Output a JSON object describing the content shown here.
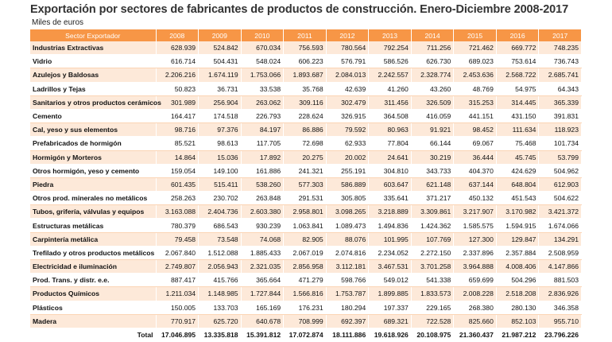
{
  "title": "Exportación por sectores de fabricantes de productos de construcción. Enero-Diciembre 2008-2017",
  "subtitle": "Miles de euros",
  "table": {
    "header": [
      "Sector Exportador",
      "2008",
      "2009",
      "2010",
      "2011",
      "2012",
      "2013",
      "2014",
      "2015",
      "2016",
      "2017"
    ],
    "rows": [
      [
        "Industrias Extractivas",
        "628.939",
        "524.842",
        "670.034",
        "756.593",
        "780.564",
        "792.254",
        "711.256",
        "721.462",
        "669.772",
        "748.235"
      ],
      [
        "Vidrio",
        "616.714",
        "504.431",
        "548.024",
        "606.223",
        "576.791",
        "586.526",
        "626.730",
        "689.023",
        "753.614",
        "736.743"
      ],
      [
        "Azulejos y Baldosas",
        "2.206.216",
        "1.674.119",
        "1.753.066",
        "1.893.687",
        "2.084.013",
        "2.242.557",
        "2.328.774",
        "2.453.636",
        "2.568.722",
        "2.685.741"
      ],
      [
        "Ladrillos y Tejas",
        "50.823",
        "36.731",
        "33.538",
        "35.768",
        "42.639",
        "41.260",
        "43.260",
        "48.769",
        "54.975",
        "64.343"
      ],
      [
        "Sanitarios y otros productos cerámicos",
        "301.989",
        "256.904",
        "263.062",
        "309.116",
        "302.479",
        "311.456",
        "326.509",
        "315.253",
        "314.445",
        "365.339"
      ],
      [
        "Cemento",
        "164.417",
        "174.518",
        "226.793",
        "228.624",
        "326.915",
        "364.508",
        "416.059",
        "441.151",
        "431.150",
        "391.831"
      ],
      [
        "Cal, yeso y sus elementos",
        "98.716",
        "97.376",
        "84.197",
        "86.886",
        "79.592",
        "80.963",
        "91.921",
        "98.452",
        "111.634",
        "118.923"
      ],
      [
        "Prefabricados de hormigón",
        "85.521",
        "98.613",
        "117.705",
        "72.698",
        "62.933",
        "77.804",
        "66.144",
        "69.067",
        "75.468",
        "101.734"
      ],
      [
        "Hormigón y Morteros",
        "14.864",
        "15.036",
        "17.892",
        "20.275",
        "20.002",
        "24.641",
        "30.219",
        "36.444",
        "45.745",
        "53.799"
      ],
      [
        "Otros hormigón, yeso y cemento",
        "159.054",
        "149.100",
        "161.886",
        "241.321",
        "255.191",
        "304.810",
        "343.733",
        "404.370",
        "424.629",
        "504.962"
      ],
      [
        "Piedra",
        "601.435",
        "515.411",
        "538.260",
        "577.303",
        "586.889",
        "603.647",
        "621.148",
        "637.144",
        "648.804",
        "612.903"
      ],
      [
        "Otros prod. minerales no metálicos",
        "258.263",
        "230.702",
        "263.848",
        "291.531",
        "305.805",
        "335.641",
        "371.217",
        "450.132",
        "451.543",
        "504.622"
      ],
      [
        "Tubos, grifería, válvulas y equipos",
        "3.163.088",
        "2.404.736",
        "2.603.380",
        "2.958.801",
        "3.098.265",
        "3.218.889",
        "3.309.861",
        "3.217.907",
        "3.170.982",
        "3.421.372"
      ],
      [
        "Estructuras metálicas",
        "780.379",
        "686.543",
        "930.239",
        "1.063.841",
        "1.089.473",
        "1.494.836",
        "1.424.362",
        "1.585.575",
        "1.594.915",
        "1.674.066"
      ],
      [
        "Carpintería metálica",
        "79.458",
        "73.548",
        "74.068",
        "82.905",
        "88.076",
        "101.995",
        "107.769",
        "127.300",
        "129.847",
        "134.291"
      ],
      [
        "Trefilado y otros productos metálicos",
        "2.067.840",
        "1.512.088",
        "1.885.433",
        "2.067.019",
        "2.074.816",
        "2.234.052",
        "2.272.150",
        "2.337.896",
        "2.357.884",
        "2.508.959"
      ],
      [
        "Electricidad e iluminación",
        "2.749.807",
        "2.056.943",
        "2.321.035",
        "2.856.958",
        "3.112.181",
        "3.467.531",
        "3.701.258",
        "3.964.888",
        "4.008.406",
        "4.147.866"
      ],
      [
        "Prod. Trans. y distr. e.e.",
        "887.417",
        "415.766",
        "365.664",
        "471.279",
        "598.766",
        "549.012",
        "541.338",
        "659.699",
        "504.296",
        "881.503"
      ],
      [
        "Productos Químicos",
        "1.211.034",
        "1.148.985",
        "1.727.844",
        "1.566.816",
        "1.753.787",
        "1.899.885",
        "1.833.573",
        "2.008.228",
        "2.518.208",
        "2.836.926"
      ],
      [
        "Plásticos",
        "150.005",
        "133.703",
        "165.169",
        "176.231",
        "180.294",
        "197.337",
        "229.165",
        "268.380",
        "280.130",
        "346.358"
      ],
      [
        "Madera",
        "770.917",
        "625.720",
        "640.678",
        "708.999",
        "692.397",
        "689.321",
        "722.528",
        "825.660",
        "852.103",
        "955.710"
      ]
    ],
    "total": [
      "Total",
      "17.046.895",
      "13.335.818",
      "15.391.812",
      "17.072.874",
      "18.111.886",
      "19.618.926",
      "20.108.975",
      "21.360.437",
      "21.987.212",
      "23.796.226"
    ]
  }
}
